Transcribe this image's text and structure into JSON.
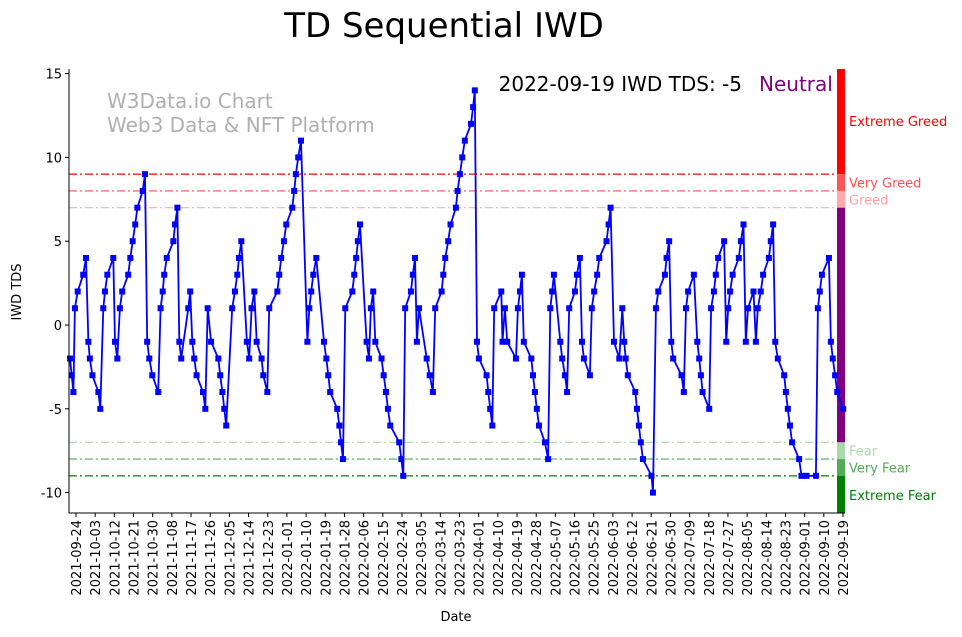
{
  "chart_data": {
    "type": "line",
    "title": "TD Sequential IWD",
    "xlabel": "Date",
    "ylabel": "IWD TDS",
    "x_unit": "days since 2021-09-24",
    "ylim": [
      -11.2,
      15.3
    ],
    "xlim": [
      -3.3,
      360.5
    ],
    "yticks": [
      -10,
      -5,
      0,
      5,
      10,
      15
    ],
    "xtick_labels": [
      "2021-09-24",
      "2021-10-03",
      "2021-10-12",
      "2021-10-21",
      "2021-10-30",
      "2021-11-08",
      "2021-11-17",
      "2021-11-26",
      "2021-12-05",
      "2021-12-14",
      "2021-12-23",
      "2022-01-01",
      "2022-01-10",
      "2022-01-19",
      "2022-01-28",
      "2022-02-06",
      "2022-02-15",
      "2022-02-24",
      "2022-03-05",
      "2022-03-14",
      "2022-03-23",
      "2022-04-01",
      "2022-04-10",
      "2022-04-19",
      "2022-04-28",
      "2022-05-07",
      "2022-05-16",
      "2022-05-25",
      "2022-06-03",
      "2022-06-12",
      "2022-06-21",
      "2022-06-30",
      "2022-07-09",
      "2022-07-18",
      "2022-07-27",
      "2022-08-05",
      "2022-08-14",
      "2022-08-23",
      "2022-09-01",
      "2022-09-10",
      "2022-09-19"
    ],
    "xtick_step_days": 9,
    "series": [
      {
        "name": "IWD TDS",
        "color": "#0000ff",
        "points": [
          [
            -2.8,
            -2
          ],
          [
            -2,
            -3
          ],
          [
            -1.2,
            -4
          ],
          [
            -0.5,
            1
          ],
          [
            0.8,
            2
          ],
          [
            3.4,
            3
          ],
          [
            4.7,
            4
          ],
          [
            5.8,
            -1
          ],
          [
            6.5,
            -2
          ],
          [
            7.7,
            -3
          ],
          [
            10.5,
            -4
          ],
          [
            11.4,
            -5
          ],
          [
            12.8,
            1
          ],
          [
            13.6,
            2
          ],
          [
            14.7,
            3
          ],
          [
            17.5,
            4
          ],
          [
            18.3,
            -1
          ],
          [
            19.4,
            -2
          ],
          [
            20.6,
            1
          ],
          [
            21.7,
            2
          ],
          [
            24.5,
            3
          ],
          [
            25.5,
            4
          ],
          [
            26.6,
            5
          ],
          [
            27.8,
            6
          ],
          [
            28.8,
            7
          ],
          [
            31.3,
            8
          ],
          [
            32.4,
            9
          ],
          [
            33.4,
            -1
          ],
          [
            34.4,
            -2
          ],
          [
            35.8,
            -3
          ],
          [
            38.6,
            -4
          ],
          [
            39.7,
            1
          ],
          [
            40.7,
            2
          ],
          [
            41.4,
            3
          ],
          [
            42.6,
            4
          ],
          [
            45.7,
            5
          ],
          [
            46.5,
            6
          ],
          [
            47.6,
            7
          ],
          [
            48.5,
            -1
          ],
          [
            49.4,
            -2
          ],
          [
            52.7,
            1
          ],
          [
            53.6,
            2
          ],
          [
            54.6,
            -1
          ],
          [
            55.5,
            -2
          ],
          [
            56.6,
            -3
          ],
          [
            59.6,
            -4
          ],
          [
            60.7,
            -5
          ],
          [
            61.8,
            1
          ],
          [
            63.4,
            -1
          ],
          [
            66.8,
            -2
          ],
          [
            67.7,
            -3
          ],
          [
            68.7,
            -4
          ],
          [
            69.6,
            -5
          ],
          [
            70.5,
            -6
          ],
          [
            73.3,
            1
          ],
          [
            74.6,
            2
          ],
          [
            75.7,
            3
          ],
          [
            76.5,
            4
          ],
          [
            77.6,
            5
          ],
          [
            80.2,
            -1
          ],
          [
            81.3,
            -2
          ],
          [
            82.4,
            1
          ],
          [
            83.7,
            2
          ],
          [
            84.8,
            -1
          ],
          [
            87.1,
            -2
          ],
          [
            87.9,
            -3
          ],
          [
            89.8,
            -4
          ],
          [
            90.7,
            1
          ],
          [
            94.5,
            2
          ],
          [
            95.4,
            3
          ],
          [
            96.3,
            4
          ],
          [
            97.6,
            5
          ],
          [
            98.7,
            6
          ],
          [
            101.5,
            7
          ],
          [
            102.4,
            8
          ],
          [
            103.2,
            9
          ],
          [
            104.3,
            10
          ],
          [
            105.6,
            11
          ],
          [
            108.6,
            -1
          ],
          [
            109.5,
            1
          ],
          [
            110.4,
            2
          ],
          [
            111.4,
            3
          ],
          [
            112.8,
            4
          ],
          [
            116.4,
            -1
          ],
          [
            117.5,
            -2
          ],
          [
            118.4,
            -3
          ],
          [
            119.3,
            -4
          ],
          [
            122.6,
            -5
          ],
          [
            123.6,
            -6
          ],
          [
            124.4,
            -7
          ],
          [
            125.3,
            -8
          ],
          [
            126.4,
            1
          ],
          [
            129.7,
            2
          ],
          [
            130.6,
            3
          ],
          [
            131.5,
            4
          ],
          [
            132.3,
            5
          ],
          [
            133.3,
            6
          ],
          [
            136.4,
            -1
          ],
          [
            137.5,
            -2
          ],
          [
            138.4,
            1
          ],
          [
            139.5,
            2
          ],
          [
            140.5,
            -1
          ],
          [
            143.4,
            -2
          ],
          [
            144.4,
            -3
          ],
          [
            145.5,
            -4
          ],
          [
            146.4,
            -5
          ],
          [
            147.5,
            -6
          ],
          [
            151.7,
            -7
          ],
          [
            152.7,
            -8
          ],
          [
            153.6,
            -9
          ],
          [
            154.5,
            1
          ],
          [
            157.2,
            2
          ],
          [
            158.1,
            3
          ],
          [
            159.1,
            4
          ],
          [
            160,
            -1
          ],
          [
            161,
            1
          ],
          [
            164.6,
            -2
          ],
          [
            166,
            -3
          ],
          [
            167.5,
            -4
          ],
          [
            168.6,
            1
          ],
          [
            171.6,
            2
          ],
          [
            172.4,
            3
          ],
          [
            173.3,
            4
          ],
          [
            174.7,
            5
          ],
          [
            175.8,
            6
          ],
          [
            178.3,
            7
          ],
          [
            179.1,
            8
          ],
          [
            180.2,
            9
          ],
          [
            181.3,
            10
          ],
          [
            182.5,
            11
          ],
          [
            185.4,
            12
          ],
          [
            186.4,
            13
          ],
          [
            187.2,
            14
          ],
          [
            188.2,
            -1
          ],
          [
            189.1,
            -2
          ],
          [
            192.7,
            -3
          ],
          [
            193.5,
            -4
          ],
          [
            194.4,
            -5
          ],
          [
            195.4,
            -6
          ],
          [
            196.3,
            1
          ],
          [
            199.6,
            2
          ],
          [
            200.2,
            -1
          ],
          [
            201.3,
            1
          ],
          [
            202.4,
            -1
          ],
          [
            206.5,
            -2
          ],
          [
            207.4,
            1
          ],
          [
            208.4,
            2
          ],
          [
            209.3,
            3
          ],
          [
            210.2,
            -1
          ],
          [
            213.7,
            -2
          ],
          [
            214.5,
            -3
          ],
          [
            215.4,
            -4
          ],
          [
            216.3,
            -5
          ],
          [
            217.3,
            -6
          ],
          [
            220.1,
            -7
          ],
          [
            221.6,
            -8
          ],
          [
            222.6,
            1
          ],
          [
            223.5,
            2
          ],
          [
            224.3,
            3
          ],
          [
            227.3,
            -1
          ],
          [
            228.2,
            -2
          ],
          [
            229.5,
            -3
          ],
          [
            230.5,
            -4
          ],
          [
            231.5,
            1
          ],
          [
            234.2,
            2
          ],
          [
            235.1,
            3
          ],
          [
            236.5,
            4
          ],
          [
            237.5,
            -1
          ],
          [
            238.4,
            -2
          ],
          [
            241.2,
            -3
          ],
          [
            242.1,
            1
          ],
          [
            243.2,
            2
          ],
          [
            244.6,
            3
          ],
          [
            245.6,
            4
          ],
          [
            249,
            5
          ],
          [
            250,
            6
          ],
          [
            250.9,
            7
          ],
          [
            252.5,
            -1
          ],
          [
            255,
            -2
          ],
          [
            256.4,
            1
          ],
          [
            257.3,
            -1
          ],
          [
            258,
            -2
          ],
          [
            259,
            -3
          ],
          [
            262.5,
            -4
          ],
          [
            263.3,
            -5
          ],
          [
            264.2,
            -6
          ],
          [
            265.1,
            -7
          ],
          [
            266.1,
            -8
          ],
          [
            270.1,
            -9
          ],
          [
            270.8,
            -10
          ],
          [
            272.2,
            1
          ],
          [
            273.3,
            2
          ],
          [
            276.4,
            3
          ],
          [
            277.2,
            4
          ],
          [
            278.4,
            5
          ],
          [
            279.4,
            -1
          ],
          [
            280.3,
            -2
          ],
          [
            284.2,
            -3
          ],
          [
            285.3,
            -4
          ],
          [
            286.3,
            1
          ],
          [
            287.3,
            2
          ],
          [
            290,
            3
          ],
          [
            291.6,
            -1
          ],
          [
            292.5,
            -2
          ],
          [
            293.3,
            -3
          ],
          [
            294.1,
            -4
          ],
          [
            297.2,
            -5
          ],
          [
            298.1,
            1
          ],
          [
            299.4,
            2
          ],
          [
            300.3,
            3
          ],
          [
            301.4,
            4
          ],
          [
            304.2,
            5
          ],
          [
            305.2,
            -1
          ],
          [
            306.1,
            1
          ],
          [
            307,
            2
          ],
          [
            308.2,
            3
          ],
          [
            311.1,
            4
          ],
          [
            312.1,
            5
          ],
          [
            313.3,
            6
          ],
          [
            314.4,
            -1
          ],
          [
            315.4,
            1
          ],
          [
            318,
            2
          ],
          [
            319.1,
            -1
          ],
          [
            320,
            1
          ],
          [
            321.4,
            2
          ],
          [
            322.5,
            3
          ],
          [
            325.2,
            4
          ],
          [
            326.1,
            5
          ],
          [
            327.2,
            6
          ],
          [
            328.2,
            -1
          ],
          [
            329.4,
            -2
          ],
          [
            332.4,
            -3
          ],
          [
            333.2,
            -4
          ],
          [
            334.1,
            -5
          ],
          [
            335.1,
            -6
          ],
          [
            336.1,
            -7
          ],
          [
            339.4,
            -8
          ],
          [
            340.5,
            -9
          ],
          [
            342.9,
            -9
          ],
          [
            347.3,
            -9
          ],
          [
            348.2,
            1
          ],
          [
            349.1,
            2
          ],
          [
            350.1,
            3
          ],
          [
            353.4,
            4
          ],
          [
            354.3,
            -1
          ],
          [
            355.2,
            -2
          ],
          [
            356.3,
            -3
          ],
          [
            357.3,
            -4
          ],
          [
            360.1,
            -5
          ]
        ]
      }
    ],
    "threshold_lines": [
      {
        "value": 9,
        "color": "#ff0000"
      },
      {
        "value": 8,
        "color": "#ff5050"
      },
      {
        "value": 7,
        "color": "#ffaaaa"
      },
      {
        "value": -7,
        "color": "#aad8aa"
      },
      {
        "value": -8,
        "color": "#44b044"
      },
      {
        "value": -9,
        "color": "#008000"
      }
    ],
    "zones": [
      {
        "label": "Extreme Greed",
        "from": 9,
        "to": 15.3,
        "color": "#ff0000"
      },
      {
        "label": "Very Greed",
        "from": 8,
        "to": 9,
        "color": "#ff5555"
      },
      {
        "label": "Greed",
        "from": 7,
        "to": 8,
        "color": "#ffaaaa"
      },
      {
        "label": "",
        "from": -7,
        "to": 7,
        "color": "#800080"
      },
      {
        "label": "Fear",
        "from": -8,
        "to": -7,
        "color": "#aad8aa"
      },
      {
        "label": "Very Fear",
        "from": -9,
        "to": -8,
        "color": "#55aa55"
      },
      {
        "label": "Extreme Fear",
        "from": -11.2,
        "to": -9,
        "color": "#008000"
      }
    ],
    "annotation": {
      "text": "2022-09-19 IWD TDS: -5",
      "status": "Neutral",
      "status_color": "#800080"
    },
    "watermark": [
      "W3Data.io Chart",
      "Web3 Data & NFT Platform"
    ],
    "grid": false
  }
}
